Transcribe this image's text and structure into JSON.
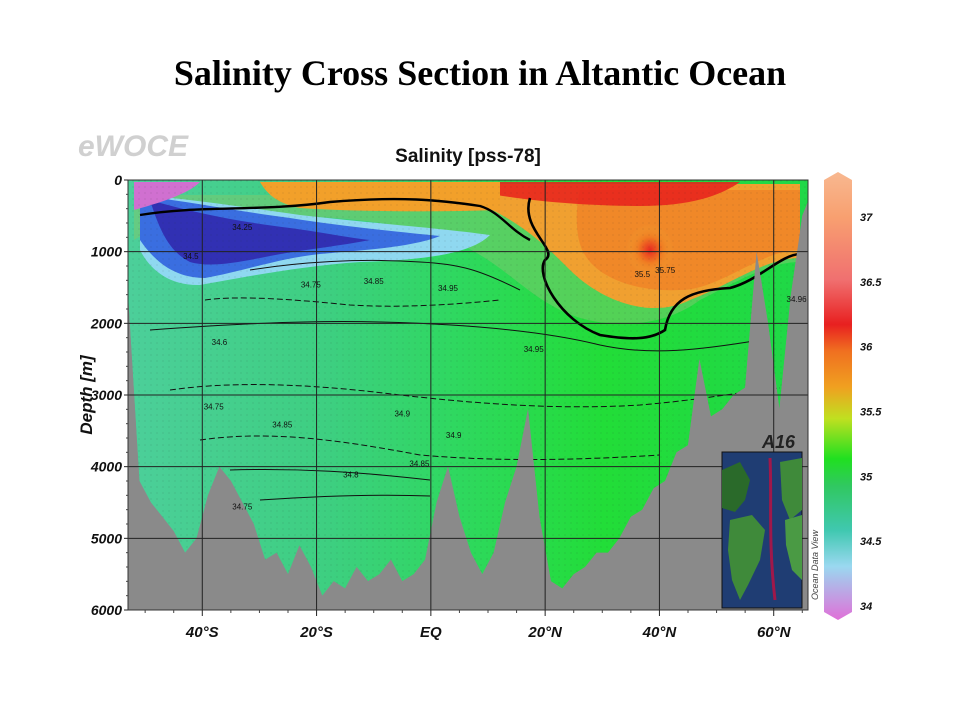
{
  "slide": {
    "title": "Salinity Cross Section in Altantic Ocean"
  },
  "chart_data": {
    "type": "heatmap",
    "watermark": "eWOCE",
    "title": "Salinity [pss-78]",
    "ylabel": "Depth [m]",
    "xlabel": "",
    "x_ticks": [
      "40°S",
      "20°S",
      "EQ",
      "20°N",
      "40°N",
      "60°N"
    ],
    "x_tick_lat": [
      -40,
      -20,
      0,
      20,
      40,
      60
    ],
    "x_range_lat": [
      -53,
      66
    ],
    "y_ticks": [
      0,
      1000,
      2000,
      3000,
      4000,
      5000,
      6000
    ],
    "ylim": [
      0,
      6000
    ],
    "colorbar": {
      "ticks": [
        37,
        36.5,
        36,
        35.5,
        35,
        34.5,
        34
      ],
      "range": [
        34,
        37.2
      ],
      "side_label": "Ocean Data View"
    },
    "inset": {
      "title": "A16",
      "description_track": "A16"
    },
    "contour_labels": [
      {
        "text": "34.25",
        "lat": -33,
        "depth": 700
      },
      {
        "text": "34.5",
        "lat": -42,
        "depth": 1100
      },
      {
        "text": "34.75",
        "lat": -21,
        "depth": 1500
      },
      {
        "text": "34.85",
        "lat": -10,
        "depth": 1450
      },
      {
        "text": "34.95",
        "lat": 3,
        "depth": 1550
      },
      {
        "text": "35.5",
        "lat": 37,
        "depth": 1350
      },
      {
        "text": "35.75",
        "lat": 41,
        "depth": 1300
      },
      {
        "text": "34.95",
        "lat": 18,
        "depth": 2400
      },
      {
        "text": "34.9",
        "lat": -5,
        "depth": 3300
      },
      {
        "text": "34.9",
        "lat": 4,
        "depth": 3600
      },
      {
        "text": "34.85",
        "lat": -2,
        "depth": 4000
      },
      {
        "text": "34.8",
        "lat": -14,
        "depth": 4150
      },
      {
        "text": "34.75",
        "lat": -38,
        "depth": 3200
      },
      {
        "text": "34.85",
        "lat": -26,
        "depth": 3450
      },
      {
        "text": "34.75",
        "lat": -33,
        "depth": 4600
      },
      {
        "text": "34.6",
        "lat": -37,
        "depth": 2300
      },
      {
        "text": "34.96",
        "lat": 64,
        "depth": 1700
      }
    ],
    "bathymetry_depth_m": [
      [
        -53,
        1600
      ],
      [
        -51,
        4200
      ],
      [
        -49,
        4500
      ],
      [
        -47,
        4700
      ],
      [
        -45,
        4900
      ],
      [
        -43,
        5200
      ],
      [
        -41,
        5000
      ],
      [
        -39,
        4400
      ],
      [
        -37,
        4000
      ],
      [
        -35,
        4200
      ],
      [
        -33,
        4500
      ],
      [
        -31,
        4800
      ],
      [
        -29,
        5300
      ],
      [
        -27,
        5200
      ],
      [
        -25,
        5500
      ],
      [
        -23,
        5100
      ],
      [
        -21,
        5400
      ],
      [
        -19,
        5800
      ],
      [
        -17,
        5600
      ],
      [
        -15,
        5700
      ],
      [
        -13,
        5400
      ],
      [
        -11,
        5600
      ],
      [
        -9,
        5500
      ],
      [
        -7,
        5300
      ],
      [
        -5,
        5600
      ],
      [
        -3,
        5500
      ],
      [
        -1,
        5300
      ],
      [
        1,
        4500
      ],
      [
        3,
        4000
      ],
      [
        5,
        4700
      ],
      [
        7,
        5200
      ],
      [
        9,
        5500
      ],
      [
        11,
        5200
      ],
      [
        13,
        4500
      ],
      [
        15,
        4000
      ],
      [
        17,
        3200
      ],
      [
        19,
        4700
      ],
      [
        21,
        5600
      ],
      [
        23,
        5700
      ],
      [
        25,
        5500
      ],
      [
        27,
        5400
      ],
      [
        29,
        5200
      ],
      [
        31,
        5200
      ],
      [
        33,
        5000
      ],
      [
        35,
        4700
      ],
      [
        37,
        4600
      ],
      [
        39,
        4300
      ],
      [
        41,
        4200
      ],
      [
        43,
        3800
      ],
      [
        45,
        3700
      ],
      [
        47,
        2500
      ],
      [
        49,
        3300
      ],
      [
        51,
        3200
      ],
      [
        53,
        3000
      ],
      [
        55,
        2900
      ],
      [
        57,
        1000
      ],
      [
        59,
        2000
      ],
      [
        61,
        3200
      ],
      [
        63,
        1600
      ],
      [
        65,
        500
      ],
      [
        66,
        300
      ]
    ]
  }
}
